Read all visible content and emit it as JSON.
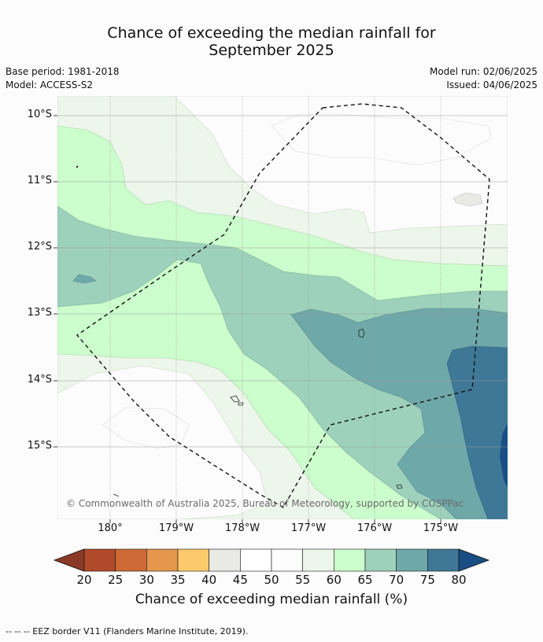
{
  "header": {
    "title_line1": "Chance of exceeding the median rainfall for",
    "title_line2": "September 2025",
    "base_period": "Base period: 1981-2018",
    "model": "Model: ACCESS-S2",
    "model_run": "Model run: 02/06/2025",
    "issued": "Issued: 04/06/2025"
  },
  "map": {
    "lat_labels": [
      "10°S",
      "11°S",
      "12°S",
      "13°S",
      "14°S",
      "15°S"
    ],
    "lon_labels": [
      "180°",
      "179°W",
      "178°W",
      "177°W",
      "176°W",
      "175°W"
    ],
    "credit": "© Commonwealth of Australia 2025, Bureau of Meteorology, supported by COSPPac"
  },
  "colorbar": {
    "ticks": [
      "20",
      "25",
      "30",
      "35",
      "40",
      "45",
      "50",
      "55",
      "60",
      "65",
      "70",
      "75",
      "80"
    ],
    "colors": [
      "#8b3a27",
      "#b04a2a",
      "#cd6a35",
      "#e3964c",
      "#fcca6b",
      "#e9e9e6",
      "#ffffff",
      "#fbfcfb",
      "#edf6ea",
      "#ccfdcc",
      "#9dd1bb",
      "#6fa8a9",
      "#3f7896",
      "#1a4f85"
    ],
    "label": "Chance of exceeding median rainfall (%)"
  },
  "footer": {
    "legend": "--  --  -- EEZ border V11 (Flanders Marine Institute, 2019)."
  }
}
